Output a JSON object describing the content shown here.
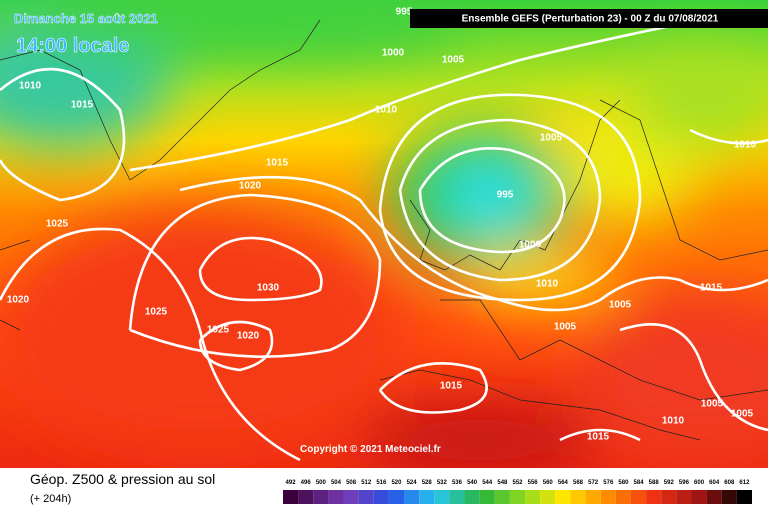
{
  "header": {
    "date": "Dimanche 15 août 2021",
    "time": "14:00 locale",
    "run": "Ensemble GEFS  (Perturbation 23)  -  00 Z du 07/08/2021"
  },
  "copyright": "Copyright © 2021 Meteociel.fr",
  "footer": {
    "title": "Géop. Z500 & pression au sol",
    "lead": "(+ 204h)"
  },
  "scale": [
    492,
    496,
    500,
    504,
    508,
    512,
    516,
    520,
    524,
    528,
    532,
    536,
    540,
    544,
    548,
    552,
    556,
    560,
    564,
    568,
    572,
    576,
    580,
    584,
    588,
    592,
    596,
    600,
    604,
    608,
    612
  ],
  "isobar_labels": [
    995,
    1000,
    1005,
    1010,
    1015,
    1010,
    1005,
    1010,
    1015,
    1020,
    995,
    1025,
    1000,
    1030,
    1010,
    1015,
    1020,
    1025,
    1005,
    1025,
    1020,
    1005,
    1015,
    1005,
    1005,
    1010,
    1015
  ]
}
